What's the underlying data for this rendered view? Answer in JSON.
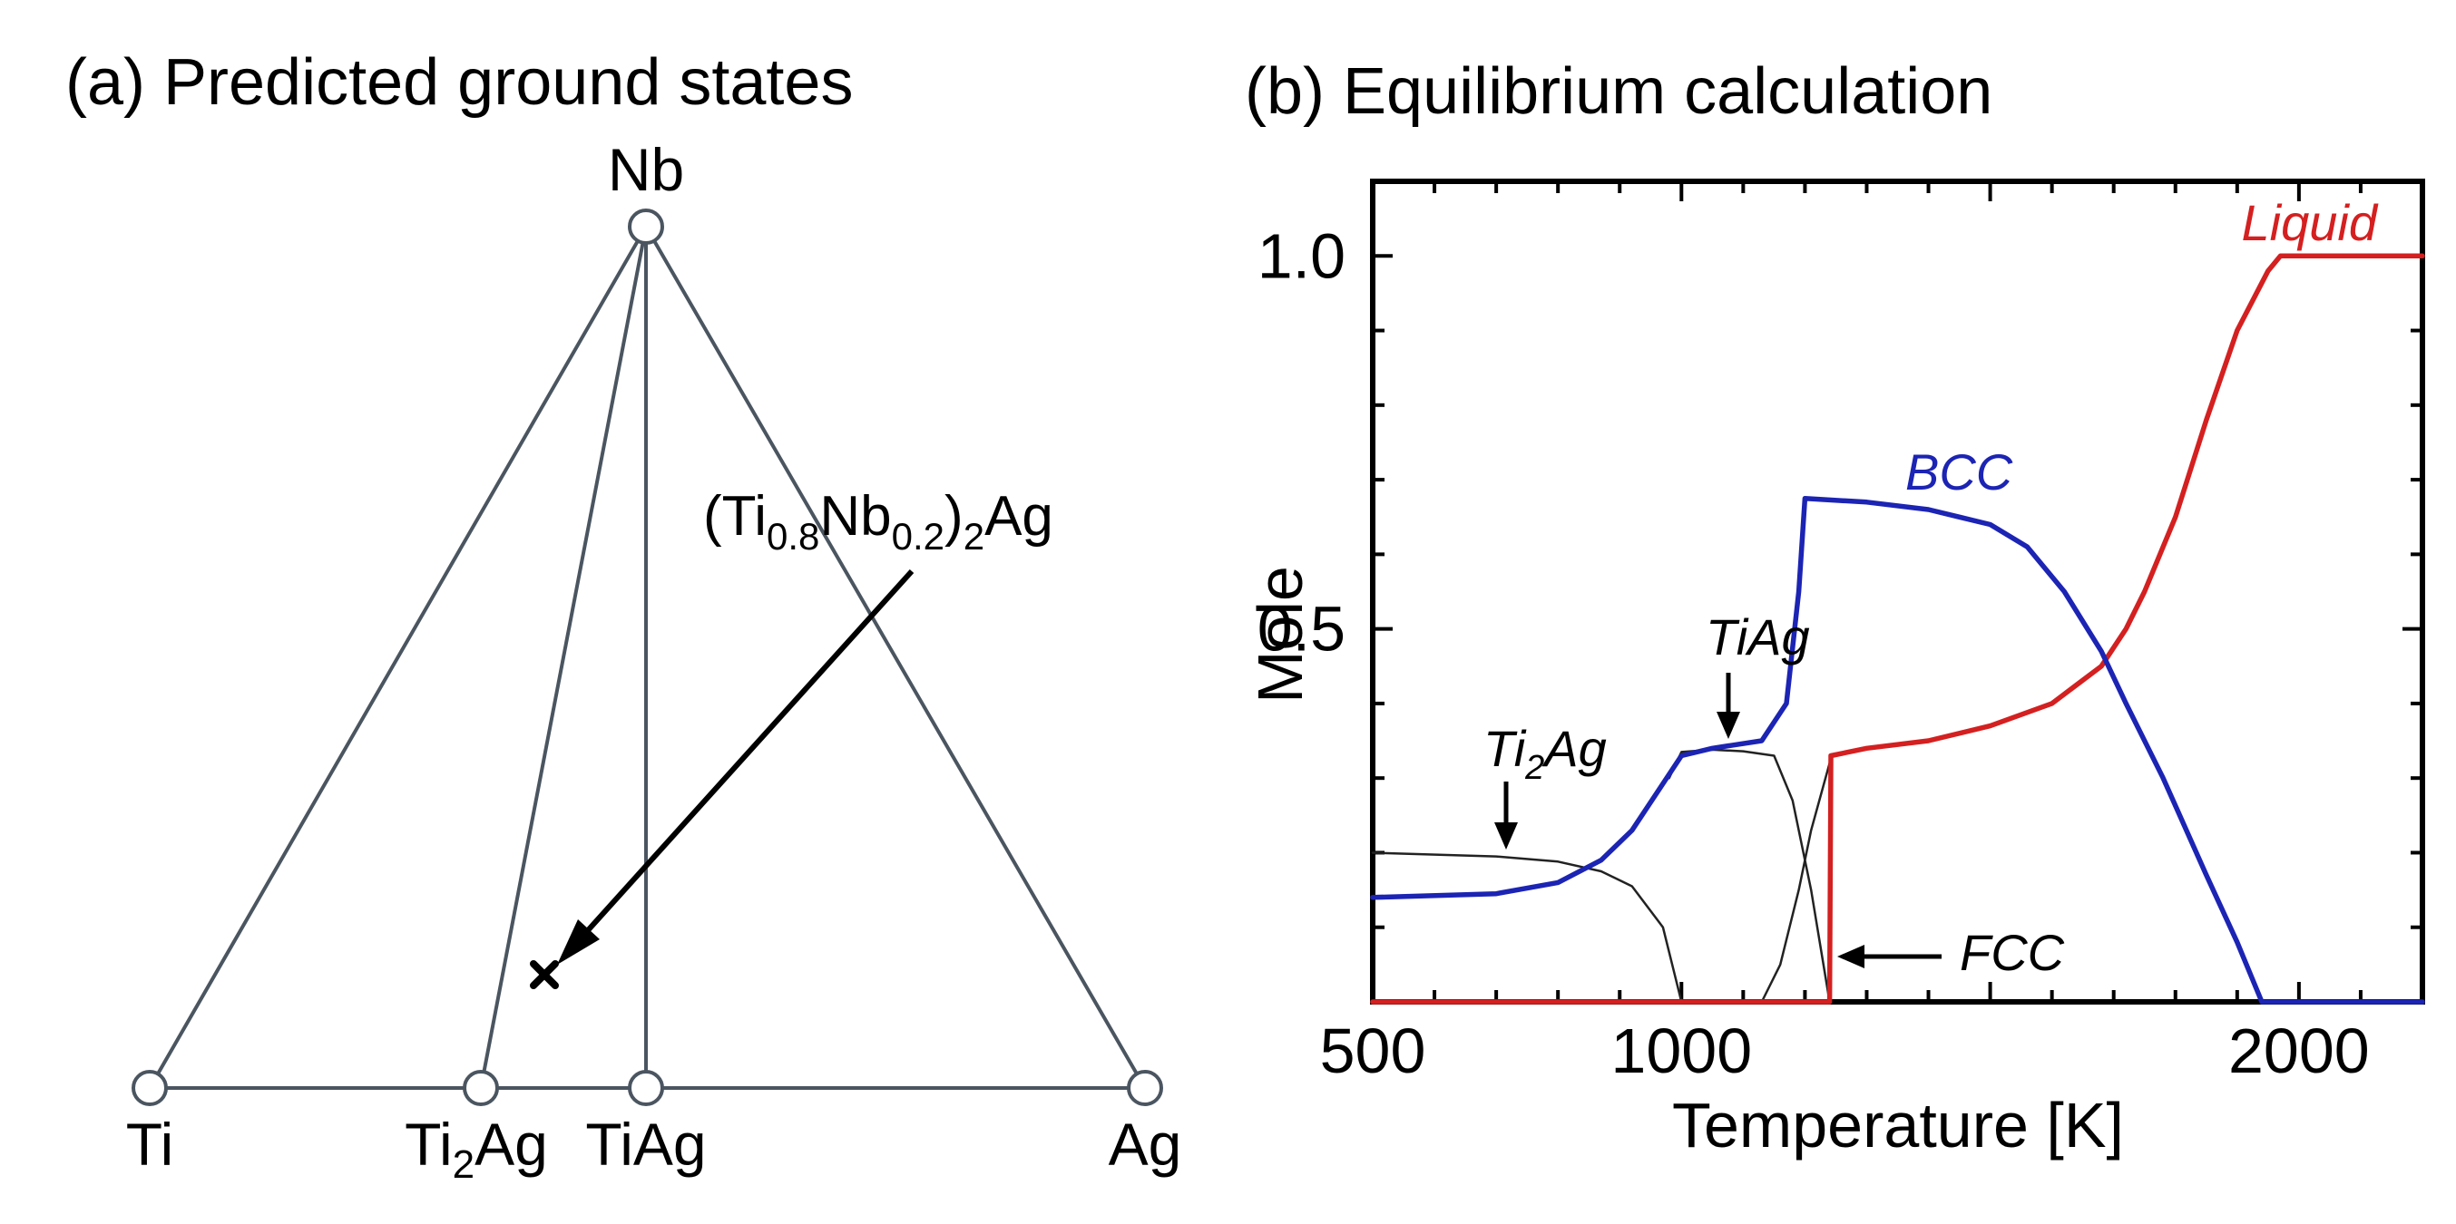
{
  "panel_a": {
    "title": "(a) Predicted ground states",
    "vertices": [
      {
        "key": "nb",
        "label": "Nb"
      },
      {
        "key": "ti",
        "label": "Ti"
      },
      {
        "key": "ti2ag",
        "label_main": "Ti",
        "label_sub": "2",
        "label_tail": "Ag"
      },
      {
        "key": "tiag",
        "label": "TiAg"
      },
      {
        "key": "ag",
        "label": "Ag"
      }
    ],
    "annotation": {
      "p1": "(Ti",
      "s1": "0.8",
      "p2": "Nb",
      "s2": "0.2",
      "p3": ")",
      "s3": "2",
      "p4": "Ag"
    },
    "colors": {
      "edges": "#4a5560",
      "marker": "#000000"
    }
  },
  "panel_b": {
    "title": "(b) Equilibrium calculation"
  },
  "chart_data": {
    "type": "line",
    "xlabel": "Temperature [K]",
    "ylabel": "Mole",
    "xlim": [
      500,
      2200
    ],
    "ylim": [
      0,
      1.1
    ],
    "xticks": [
      500,
      1000,
      2000
    ],
    "yticks": [
      0.5,
      1.0
    ],
    "xtick_labels": [
      "500",
      "1000",
      "2000"
    ],
    "ytick_labels": [
      "0.5",
      "1.0"
    ],
    "series": [
      {
        "name": "Liquid",
        "color": "#d42020",
        "points": [
          [
            500,
            0
          ],
          [
            1240,
            0
          ],
          [
            1242,
            0.33
          ],
          [
            1300,
            0.34
          ],
          [
            1400,
            0.35
          ],
          [
            1500,
            0.37
          ],
          [
            1600,
            0.4
          ],
          [
            1680,
            0.45
          ],
          [
            1720,
            0.5
          ],
          [
            1750,
            0.55
          ],
          [
            1800,
            0.65
          ],
          [
            1850,
            0.78
          ],
          [
            1900,
            0.9
          ],
          [
            1950,
            0.98
          ],
          [
            1970,
            1.0
          ],
          [
            2200,
            1.0
          ]
        ]
      },
      {
        "name": "BCC",
        "color": "#1c24b4",
        "points": [
          [
            500,
            0.14
          ],
          [
            700,
            0.145
          ],
          [
            800,
            0.16
          ],
          [
            870,
            0.19
          ],
          [
            920,
            0.23
          ],
          [
            960,
            0.28
          ],
          [
            1000,
            0.33
          ],
          [
            1050,
            0.34
          ],
          [
            1130,
            0.35
          ],
          [
            1170,
            0.4
          ],
          [
            1190,
            0.55
          ],
          [
            1200,
            0.675
          ],
          [
            1300,
            0.67
          ],
          [
            1400,
            0.66
          ],
          [
            1500,
            0.64
          ],
          [
            1560,
            0.61
          ],
          [
            1620,
            0.55
          ],
          [
            1680,
            0.47
          ],
          [
            1720,
            0.4
          ],
          [
            1780,
            0.3
          ],
          [
            1850,
            0.17
          ],
          [
            1900,
            0.08
          ],
          [
            1940,
            0.0
          ],
          [
            2200,
            0.0
          ]
        ]
      },
      {
        "name": "Ti2Ag",
        "color": "#222222",
        "points": [
          [
            500,
            0.2
          ],
          [
            700,
            0.195
          ],
          [
            800,
            0.188
          ],
          [
            870,
            0.175
          ],
          [
            920,
            0.155
          ],
          [
            970,
            0.1
          ],
          [
            1000,
            0.0
          ]
        ]
      },
      {
        "name": "TiAg",
        "color": "#222222",
        "points": [
          [
            980,
            0.3
          ],
          [
            1000,
            0.335
          ],
          [
            1050,
            0.338
          ],
          [
            1100,
            0.336
          ],
          [
            1150,
            0.33
          ],
          [
            1180,
            0.27
          ],
          [
            1210,
            0.15
          ],
          [
            1240,
            0.0
          ]
        ]
      },
      {
        "name": "FCC",
        "color": "#222222",
        "points": [
          [
            1130,
            0.0
          ],
          [
            1160,
            0.05
          ],
          [
            1190,
            0.15
          ],
          [
            1210,
            0.23
          ],
          [
            1240,
            0.32
          ]
        ]
      }
    ],
    "labels": {
      "liquid": "Liquid",
      "bcc": "BCC",
      "tiag": "TiAg",
      "ti2ag_main": "Ti",
      "ti2ag_sub": "2",
      "ti2ag_tail": "Ag",
      "fcc": "FCC"
    }
  }
}
